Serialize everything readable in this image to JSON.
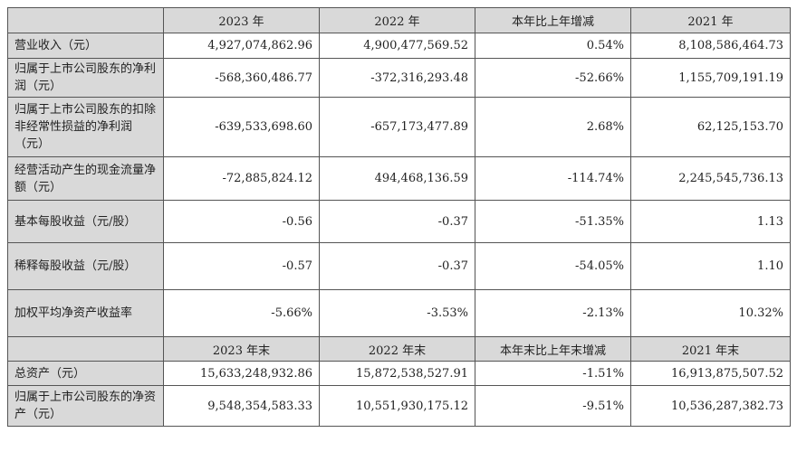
{
  "header_years": [
    "2023 年",
    "2022 年",
    "本年比上年增减",
    "2021 年"
  ],
  "header_year_end": [
    "2023 年末",
    "2022 年末",
    "本年末比上年末增减",
    "2021 年末"
  ],
  "rows": [
    {
      "label": "营业收入（元）",
      "v2023": "4,927,074,862.96",
      "v2022": "4,900,477,569.52",
      "change": "0.54%",
      "v2021": "8,108,586,464.73"
    },
    {
      "label": "归属于上市公司股东的净利润（元）",
      "v2023": "-568,360,486.77",
      "v2022": "-372,316,293.48",
      "change": "-52.66%",
      "v2021": "1,155,709,191.19"
    },
    {
      "label": "归属于上市公司股东的扣除非经常性损益的净利润（元）",
      "v2023": "-639,533,698.60",
      "v2022": "-657,173,477.89",
      "change": "2.68%",
      "v2021": "62,125,153.70"
    },
    {
      "label": "经营活动产生的现金流量净额（元）",
      "v2023": "-72,885,824.12",
      "v2022": "494,468,136.59",
      "change": "-114.74%",
      "v2021": "2,245,545,736.13"
    },
    {
      "label": "基本每股收益（元/股）",
      "v2023": "-0.56",
      "v2022": "-0.37",
      "change": "-51.35%",
      "v2021": "1.13"
    },
    {
      "label": "稀释每股收益（元/股）",
      "v2023": "-0.57",
      "v2022": "-0.37",
      "change": "-54.05%",
      "v2021": "1.10"
    },
    {
      "label": "加权平均净资产收益率",
      "v2023": "-5.66%",
      "v2022": "-3.53%",
      "change": "-2.13%",
      "v2021": "10.32%"
    }
  ],
  "rows_year_end": [
    {
      "label": "总资产（元）",
      "v2023": "15,633,248,932.86",
      "v2022": "15,872,538,527.91",
      "change": "-1.51%",
      "v2021": "16,913,875,507.52"
    },
    {
      "label": "归属于上市公司股东的净资产（元）",
      "v2023": "9,548,354,583.33",
      "v2022": "10,551,930,175.12",
      "change": "-9.51%",
      "v2021": "10,536,287,382.73"
    }
  ]
}
